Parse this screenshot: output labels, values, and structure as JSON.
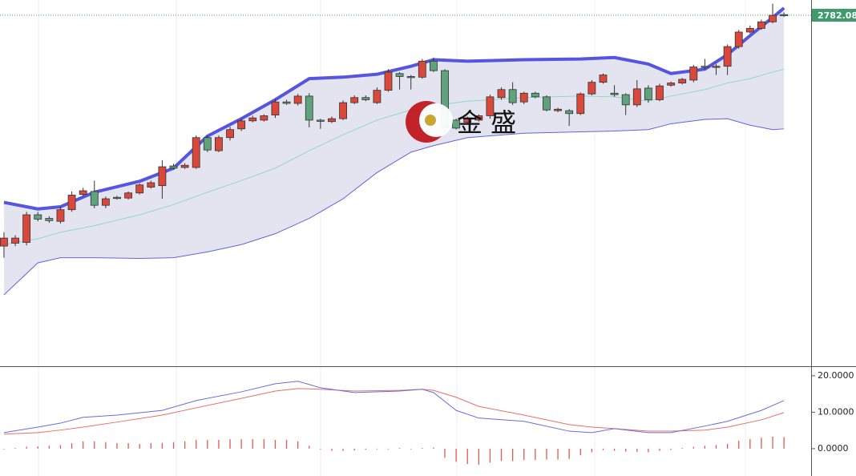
{
  "chart_data": [
    {
      "type": "candlestick",
      "watermark": "金 盛",
      "xlim": [
        -0.35,
        71.4
      ],
      "ylim": [
        2300,
        2803
      ],
      "last_price": {
        "value": 2782.08,
        "label": "2782.080"
      },
      "last_price_color": "#3f9a6c",
      "up_color": "#d9483b",
      "down_color": "#5fa27c",
      "open": [
        2465,
        2469,
        2470,
        2508,
        2503,
        2499,
        2515,
        2536,
        2540,
        2521,
        2532,
        2531,
        2538,
        2546,
        2548,
        2575,
        2573,
        2573,
        2614,
        2596,
        2614,
        2626,
        2637,
        2638,
        2645,
        2663,
        2661,
        2671,
        2638,
        2636,
        2640,
        2662,
        2669,
        2662,
        2679,
        2702,
        2698,
        2697,
        2719,
        2706,
        2638,
        2635,
        2638,
        2644,
        2669,
        2680,
        2663,
        2675,
        2670,
        2651,
        2651,
        2647,
        2674,
        2690,
        2675,
        2673,
        2659,
        2682,
        2666,
        2686,
        2689,
        2693,
        2712,
        2711,
        2712,
        2739,
        2759,
        2764,
        2773,
        2783
      ],
      "high": [
        2484,
        2480,
        2512,
        2512,
        2506,
        2519,
        2540,
        2545,
        2555,
        2533,
        2534,
        2540,
        2551,
        2555,
        2583,
        2578,
        2579,
        2617,
        2617,
        2617,
        2629,
        2640,
        2644,
        2646,
        2667,
        2666,
        2674,
        2675,
        2640,
        2643,
        2665,
        2672,
        2672,
        2683,
        2708,
        2704,
        2700,
        2722,
        2724,
        2708,
        2640,
        2643,
        2646,
        2673,
        2683,
        2690,
        2677,
        2677,
        2672,
        2655,
        2653,
        2676,
        2693,
        2702,
        2686,
        2675,
        2693,
        2686,
        2688,
        2691,
        2696,
        2714,
        2722,
        2715,
        2742,
        2762,
        2768,
        2776,
        2798,
        2786
      ],
      "low": [
        2449,
        2465,
        2466,
        2499,
        2497,
        2496,
        2512,
        2533,
        2517,
        2517,
        2529,
        2529,
        2536,
        2544,
        2530,
        2570,
        2571,
        2571,
        2594,
        2594,
        2610,
        2623,
        2635,
        2636,
        2641,
        2659,
        2658,
        2628,
        2626,
        2634,
        2638,
        2660,
        2664,
        2660,
        2677,
        2680,
        2680,
        2695,
        2704,
        2620,
        2625,
        2633,
        2636,
        2640,
        2666,
        2659,
        2660,
        2668,
        2650,
        2649,
        2630,
        2645,
        2672,
        2688,
        2670,
        2645,
        2656,
        2662,
        2664,
        2684,
        2687,
        2690,
        2708,
        2700,
        2700,
        2736,
        2757,
        2762,
        2771,
        2780
      ],
      "close": [
        2476,
        2476,
        2508,
        2502,
        2500,
        2515,
        2535,
        2541,
        2521,
        2530,
        2531,
        2538,
        2549,
        2552,
        2574,
        2572,
        2576,
        2614,
        2597,
        2614,
        2625,
        2637,
        2641,
        2644,
        2663,
        2661,
        2671,
        2638,
        2637,
        2640,
        2662,
        2669,
        2666,
        2679,
        2704,
        2698,
        2697,
        2719,
        2706,
        2627,
        2627,
        2641,
        2644,
        2670,
        2680,
        2662,
        2675,
        2670,
        2652,
        2653,
        2647,
        2674,
        2690,
        2700,
        2673,
        2659,
        2681,
        2666,
        2685,
        2689,
        2694,
        2711,
        2711,
        2712,
        2739,
        2759,
        2764,
        2773,
        2782,
        2782
      ],
      "bands": {
        "x": [
          0,
          3,
          5,
          8,
          12,
          15,
          18,
          21,
          24,
          27,
          30,
          33,
          36,
          38,
          41,
          46,
          51,
          54,
          57,
          59,
          62,
          64,
          66,
          68,
          69
        ],
        "upper": [
          2525,
          2516,
          2519,
          2539,
          2554,
          2572,
          2616,
          2640,
          2666,
          2695,
          2697,
          2701,
          2712,
          2721,
          2719,
          2721,
          2722,
          2724,
          2715,
          2702,
          2708,
          2728,
          2754,
          2779,
          2792
        ],
        "middle": [
          2467,
          2475,
          2484,
          2493,
          2508,
          2522,
          2539,
          2555,
          2572,
          2596,
          2618,
          2638,
          2652,
          2658,
          2664,
          2669,
          2671,
          2670,
          2664,
          2671,
          2680,
          2689,
          2695,
          2704,
          2708
        ],
        "lower": [
          2398,
          2442,
          2449,
          2449,
          2448,
          2449,
          2457,
          2467,
          2482,
          2503,
          2530,
          2566,
          2594,
          2603,
          2614,
          2620,
          2622,
          2623,
          2625,
          2633,
          2639,
          2640,
          2631,
          2625,
          2626
        ],
        "upper_color": "#5555e0",
        "middle_color": "#8fd8c6",
        "lower_color": "#6464dc",
        "fill_color": "#e4e4f1"
      }
    },
    {
      "type": "macd",
      "xlim": [
        -0.35,
        71.4
      ],
      "ylim": [
        -7.5,
        22.4
      ],
      "yticks": [
        {
          "value": 20,
          "label": "20.0000"
        },
        {
          "value": 10,
          "label": "10.0000"
        },
        {
          "value": 0,
          "label": "0.0000"
        }
      ],
      "x": [
        0,
        3,
        5,
        7,
        10,
        14,
        17,
        21,
        24,
        26,
        28,
        31,
        35,
        37,
        38,
        40,
        42,
        46,
        50,
        52,
        54,
        57,
        59,
        62,
        64,
        67,
        69
      ],
      "dif": [
        4.4,
        5.9,
        7.0,
        8.6,
        9.2,
        10.5,
        13.2,
        15.6,
        17.8,
        18.5,
        16.7,
        15.4,
        15.8,
        16.3,
        15.4,
        10.5,
        8.4,
        7.5,
        4.8,
        4.4,
        5.5,
        4.4,
        4.4,
        6.2,
        7.5,
        10.5,
        13.2
      ],
      "dea": [
        4.0,
        4.4,
        5.1,
        5.9,
        7.3,
        9.2,
        11.2,
        13.8,
        15.8,
        16.5,
        16.3,
        15.8,
        16.0,
        16.3,
        16.0,
        14.1,
        11.6,
        9.2,
        6.6,
        5.9,
        5.5,
        4.8,
        4.8,
        5.1,
        5.9,
        7.9,
        9.9
      ],
      "histogram": [
        0,
        0.2,
        0.5,
        0.6,
        0.8,
        1.0,
        1.5,
        2.0,
        2.0,
        1.8,
        1.5,
        1.5,
        1.3,
        1.5,
        1.6,
        1.8,
        2.0,
        2.4,
        2.4,
        2.4,
        2.6,
        2.6,
        2.6,
        2.6,
        2.4,
        2.4,
        2.0,
        0.8,
        0,
        -0.6,
        -0.6,
        -0.5,
        -0.3,
        -0.1,
        0.1,
        0.2,
        0.1,
        0.2,
        0.3,
        -2.5,
        -3.6,
        -4.2,
        -4.4,
        -3.8,
        -3.4,
        -3.4,
        -3.1,
        -3.1,
        -3.0,
        -3.0,
        -2.8,
        -1.8,
        -1.0,
        -0.4,
        -0.6,
        -0.8,
        -0.9,
        -1.0,
        -0.6,
        -0.3,
        0.2,
        0.5,
        0.8,
        1.0,
        1.3,
        2.2,
        2.6,
        3.0,
        3.3,
        3.2
      ],
      "dif_color": "#6b6bdf",
      "dea_color": "#e8706a",
      "histogram_color": "#e05a50"
    }
  ]
}
